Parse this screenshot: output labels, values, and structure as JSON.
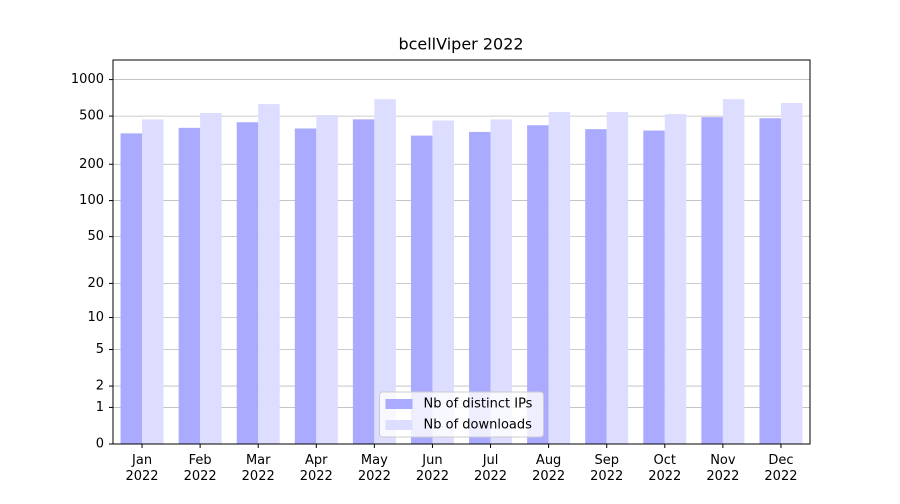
{
  "chart_data": {
    "type": "bar",
    "title": "bcellViper 2022",
    "categories": [
      "Jan 2022",
      "Feb 2022",
      "Mar 2022",
      "Apr 2022",
      "May 2022",
      "Jun 2022",
      "Jul 2022",
      "Aug 2022",
      "Sep 2022",
      "Oct 2022",
      "Nov 2022",
      "Dec 2022"
    ],
    "series": [
      {
        "name": "Nb of distinct IPs",
        "color": "#aaaaff",
        "values": [
          360,
          400,
          445,
          395,
          470,
          345,
          370,
          420,
          390,
          380,
          490,
          480
        ]
      },
      {
        "name": "Nb of downloads",
        "color": "#ddddff",
        "values": [
          470,
          530,
          628,
          510,
          690,
          460,
          470,
          540,
          540,
          519,
          690,
          641
        ]
      }
    ],
    "yscale": "log1p",
    "ylim": [
      0,
      1450
    ],
    "yticks": [
      0,
      1,
      2,
      5,
      10,
      20,
      50,
      100,
      200,
      500,
      1000
    ],
    "grid": true,
    "legend": "lower center"
  }
}
